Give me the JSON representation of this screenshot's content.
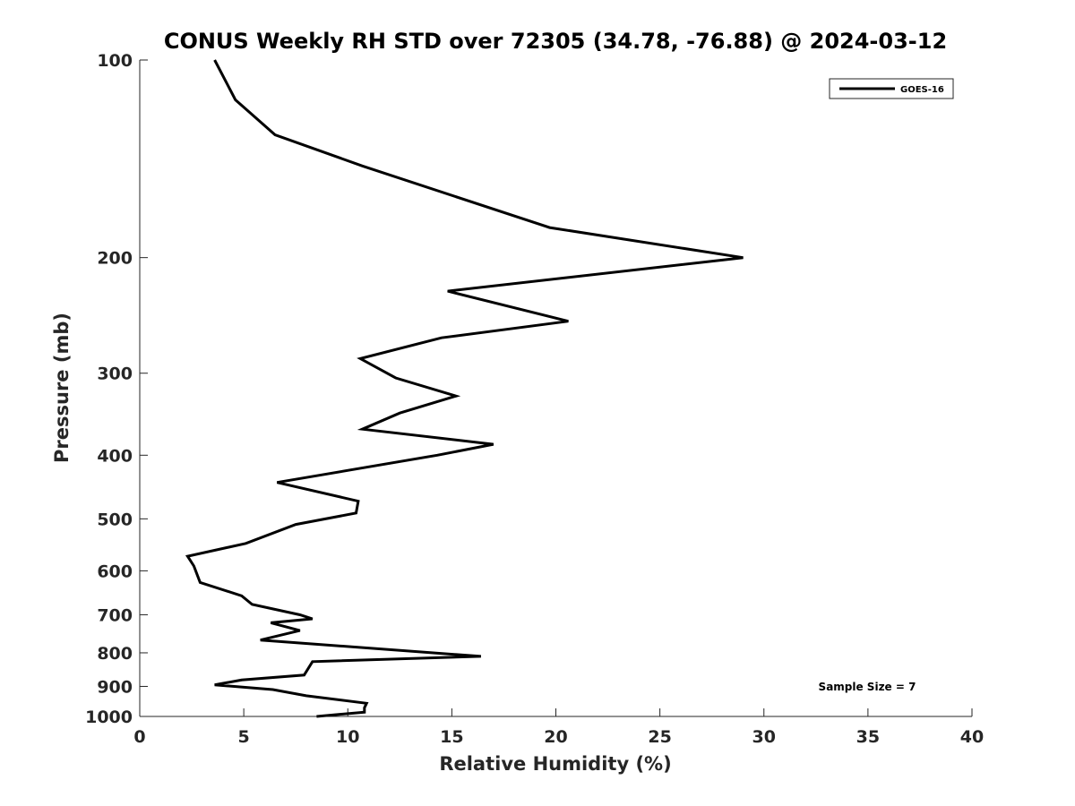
{
  "chart_data": {
    "type": "line",
    "title": "CONUS Weekly RH STD over 72305 (34.78, -76.88) @ 2024-03-12",
    "xlabel": "Relative Humidity (%)",
    "ylabel": "Pressure (mb)",
    "xlim": [
      0,
      40
    ],
    "ylim": [
      100,
      1000
    ],
    "y_scale": "log",
    "y_reversed": true,
    "x_ticks": [
      "0",
      "5",
      "10",
      "15",
      "20",
      "25",
      "30",
      "35",
      "40"
    ],
    "y_ticks": [
      "100",
      "200",
      "300",
      "400",
      "500",
      "600",
      "700",
      "800",
      "900",
      "1000"
    ],
    "grid": false,
    "legend_position": "top-right",
    "series": [
      {
        "name": "GOES-16",
        "color": "#000000",
        "x": [
          3.6,
          4.6,
          6.5,
          10.7,
          19.7,
          29.0,
          14.8,
          20.6,
          14.5,
          10.6,
          12.3,
          15.2,
          12.5,
          10.7,
          17.0,
          14.3,
          6.6,
          10.5,
          10.4,
          7.5,
          5.1,
          2.3,
          2.6,
          2.9,
          4.9,
          5.4,
          7.7,
          8.3,
          6.3,
          7.7,
          5.8,
          16.4,
          8.3,
          7.9,
          4.9,
          3.6,
          6.4,
          8.0,
          10.9,
          10.8,
          10.8,
          8.5
        ],
        "y": [
          100,
          115,
          130,
          145,
          180,
          200,
          225,
          250,
          265,
          285,
          305,
          325,
          345,
          365,
          385,
          400,
          440,
          470,
          490,
          510,
          545,
          570,
          590,
          625,
          655,
          675,
          700,
          710,
          720,
          740,
          765,
          810,
          825,
          865,
          880,
          895,
          910,
          930,
          955,
          970,
          985,
          1000
        ]
      }
    ],
    "annotation": "Sample Size = 7"
  }
}
